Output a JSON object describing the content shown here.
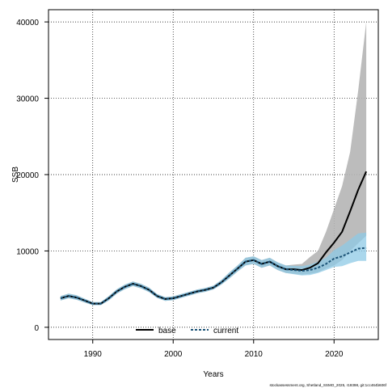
{
  "chart_data": {
    "type": "line",
    "xlabel": "Years",
    "ylabel": "SSB",
    "xlim": [
      1984.5,
      2025.5
    ],
    "ylim": [
      -1600,
      41600
    ],
    "xticks": [
      1990,
      2000,
      2010,
      2020
    ],
    "yticks": [
      0,
      10000,
      20000,
      30000,
      40000
    ],
    "xtick_labels": [
      "1990",
      "2000",
      "2010",
      "2020"
    ],
    "ytick_labels": [
      "0",
      "10000",
      "20000",
      "30000",
      "40000"
    ],
    "grid": true,
    "legend_position": "bottom-center",
    "x": [
      1986,
      1987,
      1988,
      1989,
      1990,
      1991,
      1992,
      1993,
      1994,
      1995,
      1996,
      1997,
      1998,
      1999,
      2000,
      2001,
      2002,
      2003,
      2004,
      2005,
      2006,
      2007,
      2008,
      2009,
      2010,
      2011,
      2012,
      2013,
      2014,
      2015,
      2016,
      2017,
      2018,
      2019,
      2020,
      2021,
      2022,
      2023,
      2024
    ],
    "series": [
      {
        "name": "base",
        "color": "#000000",
        "band_color": "#b5b5b5",
        "values": [
          3800,
          4100,
          3900,
          3500,
          3100,
          3100,
          3800,
          4700,
          5300,
          5700,
          5400,
          4900,
          4100,
          3700,
          3800,
          4100,
          4400,
          4700,
          4900,
          5200,
          5900,
          6800,
          7700,
          8600,
          8800,
          8300,
          8600,
          8000,
          7600,
          7600,
          7500,
          7800,
          8400,
          9800,
          11100,
          12500,
          15200,
          18000,
          20400
        ],
        "lower": [
          3500,
          3800,
          3600,
          3250,
          2900,
          2900,
          3500,
          4400,
          5000,
          5400,
          5100,
          4600,
          3850,
          3450,
          3550,
          3850,
          4150,
          4450,
          4650,
          4950,
          5600,
          6400,
          7300,
          8100,
          8300,
          7800,
          8100,
          7500,
          7100,
          7000,
          6900,
          7000,
          7200,
          7700,
          8100,
          8800,
          10000,
          11000,
          12000
        ],
        "upper": [
          4100,
          4400,
          4200,
          3750,
          3300,
          3300,
          4100,
          5000,
          5600,
          6000,
          5700,
          5200,
          4350,
          3950,
          4050,
          4350,
          4650,
          4950,
          5150,
          5450,
          6200,
          7200,
          8100,
          9100,
          9300,
          8800,
          9100,
          8500,
          8100,
          8200,
          8300,
          9200,
          10000,
          12500,
          15500,
          18500,
          23000,
          31000,
          40000
        ]
      },
      {
        "name": "current",
        "color": "#1a5276",
        "band_color": "#8ecae6",
        "values": [
          3800,
          4100,
          3900,
          3500,
          3100,
          3100,
          3800,
          4700,
          5300,
          5700,
          5400,
          4900,
          4100,
          3700,
          3800,
          4100,
          4400,
          4700,
          4900,
          5200,
          5900,
          6800,
          7700,
          8600,
          8800,
          8300,
          8600,
          8000,
          7600,
          7500,
          7400,
          7500,
          7800,
          8300,
          9000,
          9300,
          9800,
          10300,
          10400
        ],
        "lower": [
          3500,
          3800,
          3600,
          3250,
          2900,
          2900,
          3500,
          4400,
          5000,
          5400,
          5100,
          4600,
          3850,
          3450,
          3550,
          3850,
          4150,
          4450,
          4650,
          4950,
          5600,
          6400,
          7300,
          8100,
          8300,
          7800,
          8100,
          7500,
          7100,
          6950,
          6800,
          6850,
          7100,
          7500,
          7900,
          8000,
          8400,
          8700,
          8700
        ],
        "upper": [
          4100,
          4400,
          4200,
          3750,
          3300,
          3300,
          4100,
          5000,
          5600,
          6000,
          5700,
          5200,
          4350,
          3950,
          4050,
          4350,
          4650,
          4950,
          5150,
          5450,
          6200,
          7200,
          8100,
          9100,
          9300,
          8800,
          9100,
          8500,
          8100,
          8050,
          8000,
          8200,
          8600,
          9100,
          10100,
          10700,
          11500,
          12300,
          12400
        ]
      }
    ],
    "credit": "stockassessment.org, Shetland_SSMO_2025, r19398, git:1cc464b606f"
  }
}
